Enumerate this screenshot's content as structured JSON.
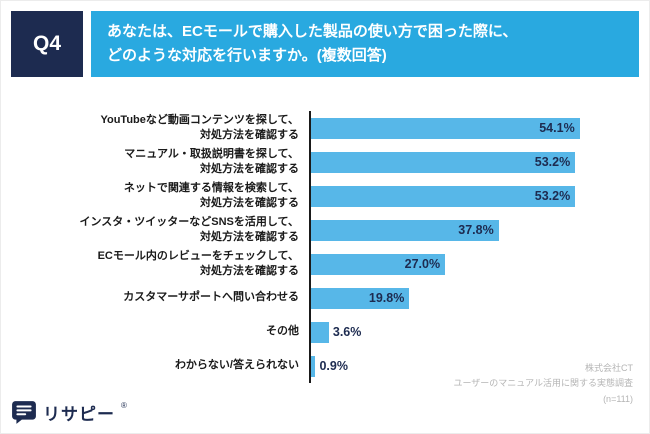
{
  "header": {
    "q_label": "Q4",
    "question": "あなたは、ECモールで購入した製品の使い方で困った際に、\nどのような対応を行いますか。(複数回答)"
  },
  "chart_data": {
    "type": "bar",
    "orientation": "horizontal",
    "title": "",
    "categories": [
      "YouTubeなど動画コンテンツを探して、\n対処方法を確認する",
      "マニュアル・取扱説明書を探して、\n対処方法を確認する",
      "ネットで関連する情報を検索して、\n対処方法を確認する",
      "インスタ・ツイッターなどSNSを活用して、\n対処方法を確認する",
      "ECモール内のレビューをチェックして、\n対処方法を確認する",
      "カスタマーサポートへ問い合わせる",
      "その他",
      "わからない/答えられない"
    ],
    "values": [
      54.1,
      53.2,
      53.2,
      37.8,
      27.0,
      19.8,
      3.6,
      0.9
    ],
    "value_labels": [
      "54.1%",
      "53.2%",
      "53.2%",
      "37.8%",
      "27.0%",
      "19.8%",
      "3.6%",
      "0.9%"
    ],
    "xlim": [
      0,
      60
    ],
    "bar_color": "#57b7e8",
    "inside_label_min": 10,
    "legend": "none",
    "grid": false
  },
  "footer": {
    "lines": [
      "株式会社CT",
      "ユーザーのマニュアル活用に関する実態調査",
      "(n=111)"
    ]
  },
  "logo": {
    "text": "リサピー",
    "reg": "®"
  },
  "colors": {
    "q_box": "#1d2b50",
    "question_box": "#29a9e0",
    "percent_text": "#1d2b50"
  }
}
